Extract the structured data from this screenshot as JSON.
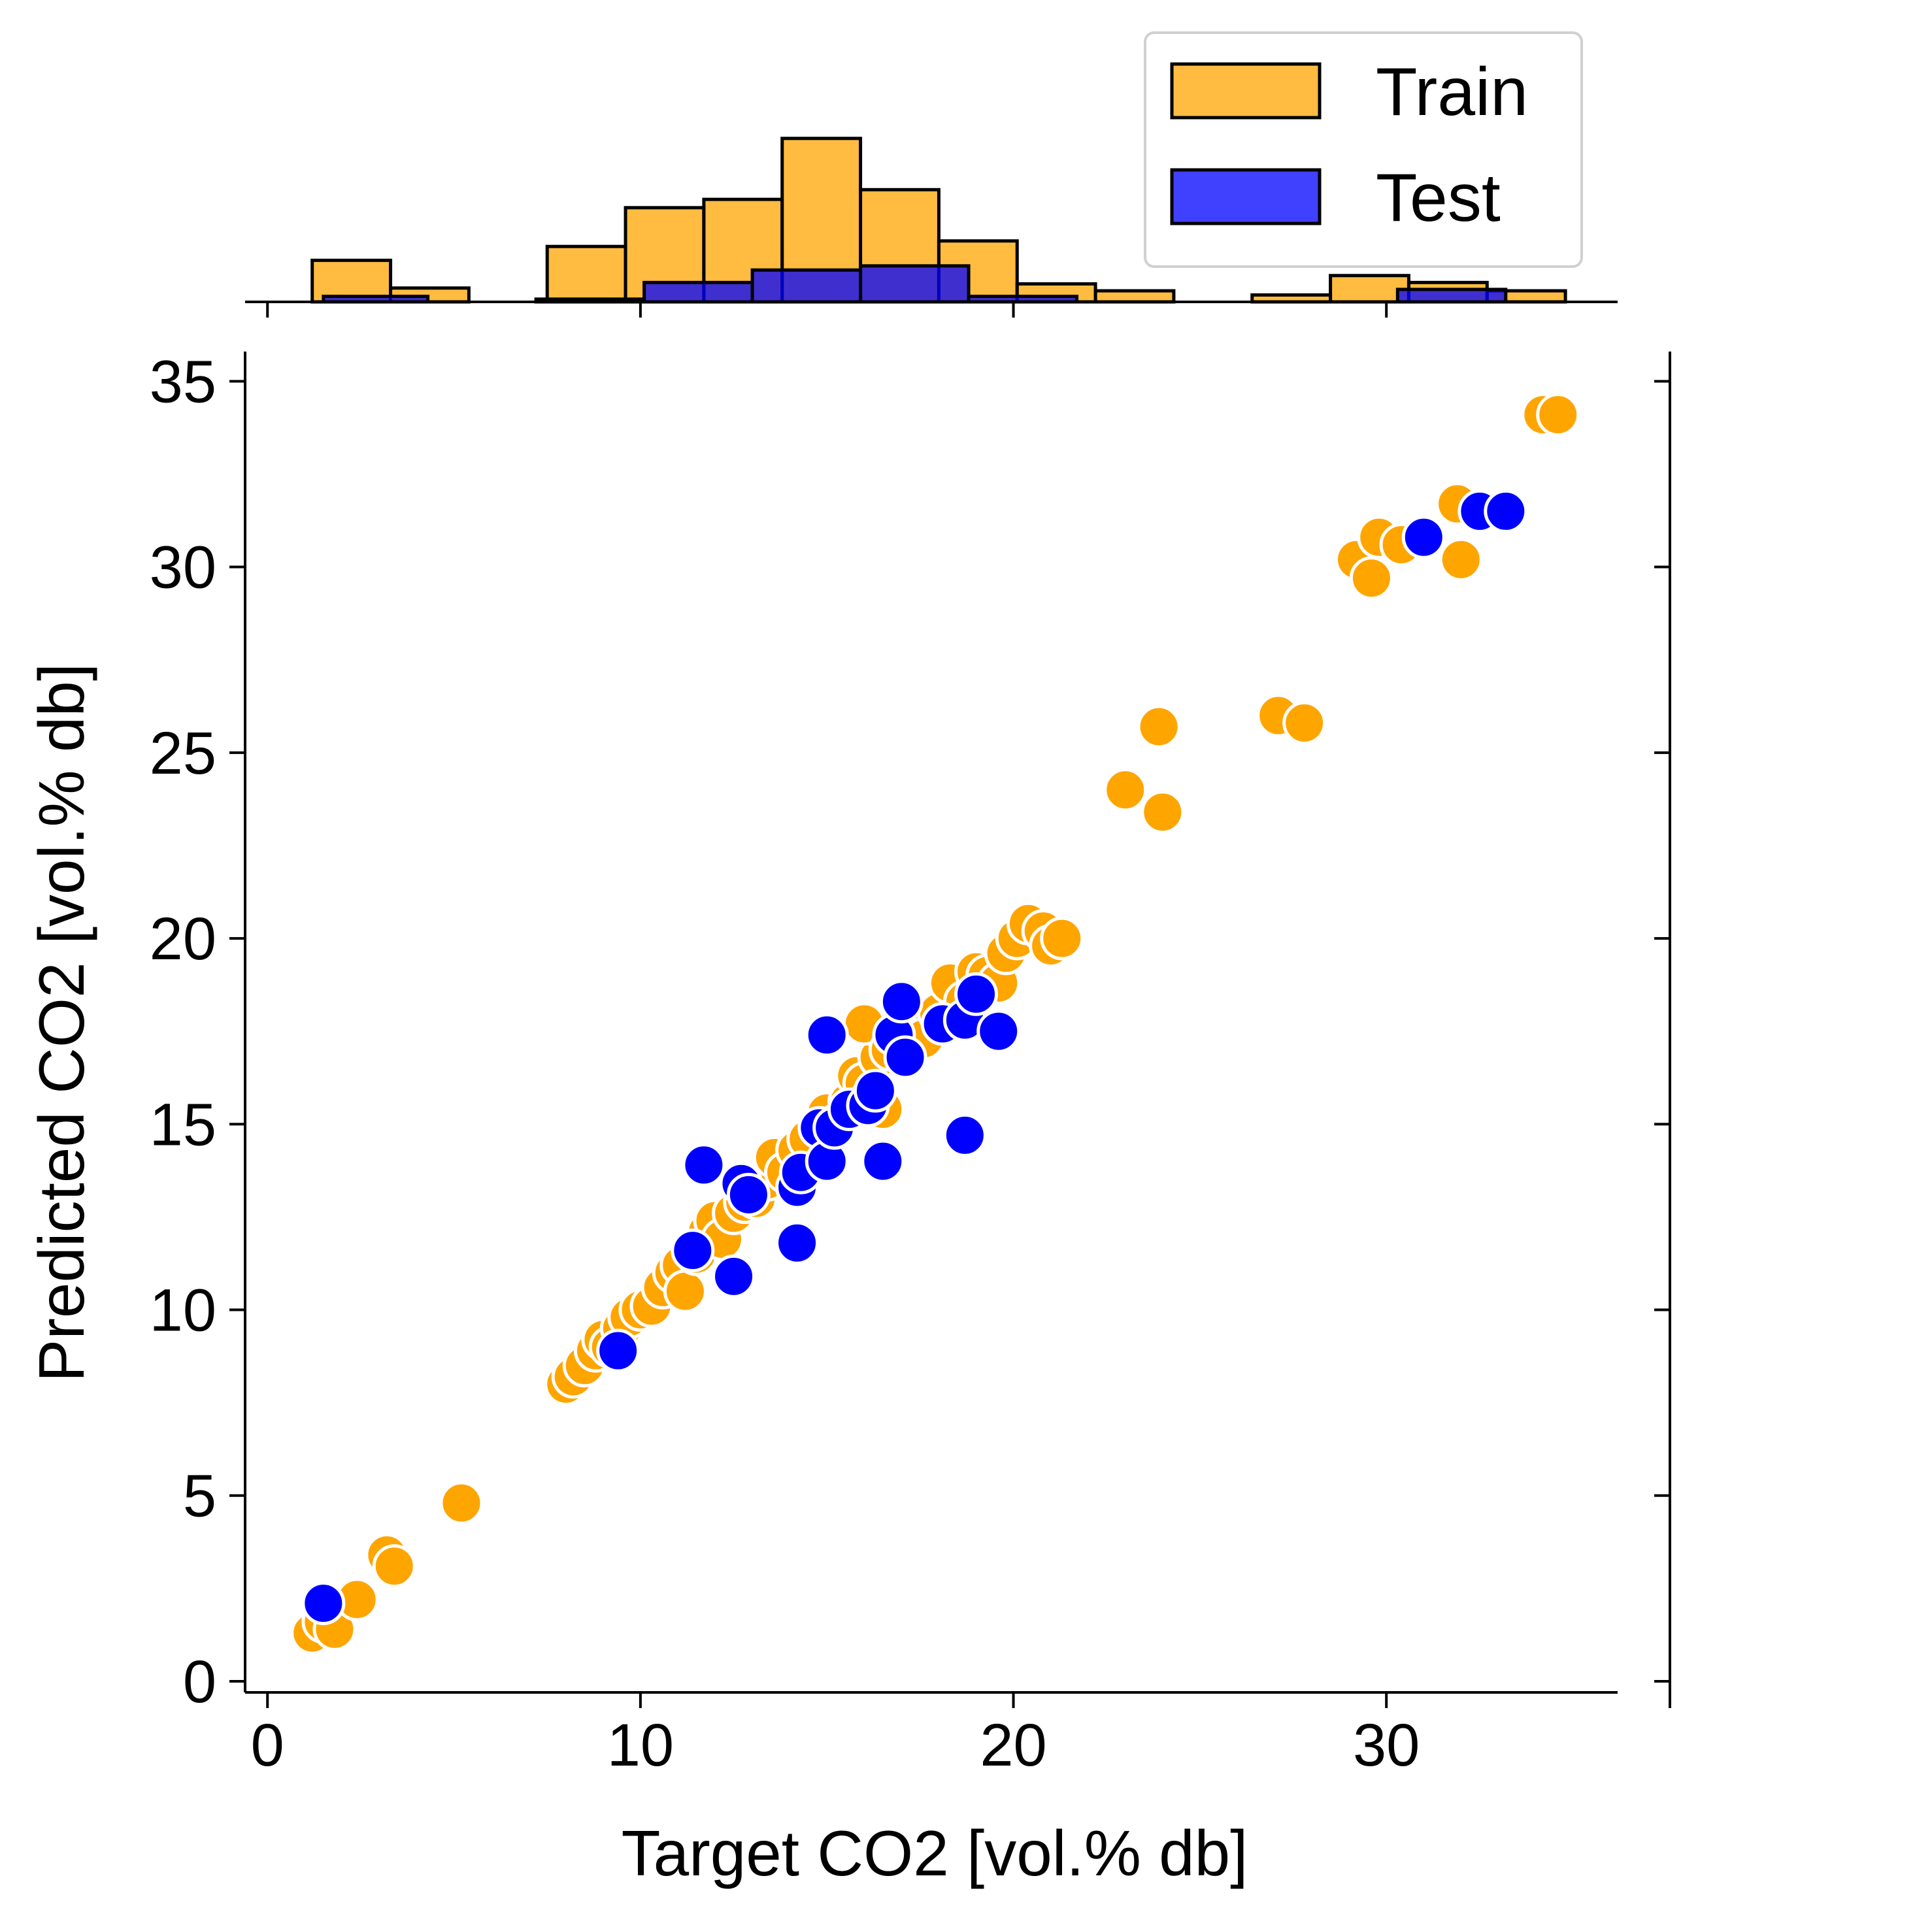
{
  "chart_data": {
    "type": "scatter",
    "title": "",
    "xlabel": "Target CO2 [vol.% db]",
    "ylabel": "Predicted CO2 [vol.% db]",
    "xlim": [
      -0.6,
      36.2
    ],
    "ylim": [
      -0.3,
      35.8
    ],
    "xticks": [
      0,
      10,
      20,
      30
    ],
    "yticks": [
      0,
      5,
      10,
      15,
      20,
      25,
      30,
      35
    ],
    "grid": false,
    "legend": {
      "placement": "top-right",
      "entries": [
        "Train",
        "Test"
      ]
    },
    "colors": {
      "Train": "#FFA500",
      "Test": "#0000FF",
      "edge": "#FFFFFF",
      "bar_edge": "#000000"
    },
    "series": [
      {
        "name": "Train",
        "points": [
          [
            1.2,
            1.3
          ],
          [
            1.5,
            1.6
          ],
          [
            1.8,
            1.4
          ],
          [
            2.4,
            2.2
          ],
          [
            3.2,
            3.4
          ],
          [
            3.4,
            3.1
          ],
          [
            5.2,
            4.8
          ],
          [
            8.0,
            8.0
          ],
          [
            8.2,
            8.2
          ],
          [
            8.5,
            8.5
          ],
          [
            8.8,
            8.9
          ],
          [
            9.0,
            9.2
          ],
          [
            9.2,
            9.0
          ],
          [
            9.5,
            9.5
          ],
          [
            9.7,
            9.8
          ],
          [
            10.0,
            10.0
          ],
          [
            10.3,
            10.1
          ],
          [
            10.6,
            10.6
          ],
          [
            10.9,
            11.0
          ],
          [
            11.1,
            11.2
          ],
          [
            11.2,
            10.5
          ],
          [
            11.5,
            11.5
          ],
          [
            11.8,
            12.1
          ],
          [
            12.0,
            12.4
          ],
          [
            12.2,
            11.9
          ],
          [
            12.5,
            12.6
          ],
          [
            12.8,
            12.9
          ],
          [
            13.1,
            13.0
          ],
          [
            13.4,
            13.5
          ],
          [
            13.6,
            14.1
          ],
          [
            13.9,
            13.7
          ],
          [
            14.2,
            14.3
          ],
          [
            14.5,
            14.6
          ],
          [
            14.8,
            15.0
          ],
          [
            15.0,
            15.3
          ],
          [
            15.3,
            15.0
          ],
          [
            15.6,
            15.6
          ],
          [
            15.8,
            16.3
          ],
          [
            16.0,
            16.1
          ],
          [
            16.2,
            15.7
          ],
          [
            16.4,
            16.8
          ],
          [
            16.5,
            15.4
          ],
          [
            16.0,
            17.7
          ],
          [
            16.7,
            17.0
          ],
          [
            17.0,
            17.4
          ],
          [
            17.3,
            17.6
          ],
          [
            17.6,
            17.3
          ],
          [
            18.0,
            18.0
          ],
          [
            18.3,
            18.8
          ],
          [
            18.7,
            18.3
          ],
          [
            19.0,
            19.1
          ],
          [
            19.3,
            19.0
          ],
          [
            19.6,
            18.8
          ],
          [
            19.8,
            19.6
          ],
          [
            20.1,
            20.0
          ],
          [
            20.4,
            20.4
          ],
          [
            20.8,
            20.2
          ],
          [
            21.0,
            19.8
          ],
          [
            21.3,
            20.0
          ],
          [
            23.0,
            24.0
          ],
          [
            23.9,
            25.7
          ],
          [
            24.0,
            23.4
          ],
          [
            27.1,
            26.0
          ],
          [
            27.8,
            25.8
          ],
          [
            29.2,
            30.2
          ],
          [
            29.6,
            29.7
          ],
          [
            29.8,
            30.8
          ],
          [
            30.4,
            30.6
          ],
          [
            31.9,
            31.7
          ],
          [
            32.0,
            30.2
          ],
          [
            34.2,
            34.1
          ],
          [
            34.6,
            34.1
          ]
        ]
      },
      {
        "name": "Test",
        "points": [
          [
            1.5,
            2.1
          ],
          [
            9.4,
            8.9
          ],
          [
            11.4,
            11.6
          ],
          [
            11.7,
            13.9
          ],
          [
            12.5,
            10.9
          ],
          [
            12.7,
            13.4
          ],
          [
            12.9,
            13.1
          ],
          [
            14.2,
            11.8
          ],
          [
            14.2,
            13.3
          ],
          [
            14.3,
            13.7
          ],
          [
            14.8,
            14.9
          ],
          [
            15.0,
            14.0
          ],
          [
            15.2,
            14.9
          ],
          [
            15.0,
            17.4
          ],
          [
            15.6,
            15.4
          ],
          [
            16.1,
            15.5
          ],
          [
            16.3,
            15.9
          ],
          [
            16.5,
            14.0
          ],
          [
            16.8,
            17.4
          ],
          [
            17.0,
            18.3
          ],
          [
            17.1,
            16.8
          ],
          [
            18.1,
            17.7
          ],
          [
            18.7,
            17.8
          ],
          [
            18.7,
            14.7
          ],
          [
            19.0,
            18.5
          ],
          [
            19.6,
            17.5
          ],
          [
            31.0,
            30.8
          ],
          [
            32.5,
            31.5
          ],
          [
            33.2,
            31.5
          ]
        ]
      }
    ],
    "histograms": {
      "bin_edges": [
        1.2,
        3.3,
        5.4,
        7.5,
        9.6,
        11.7,
        13.8,
        15.9,
        18.0,
        20.1,
        22.2,
        24.3,
        26.4,
        28.5,
        30.6,
        32.7,
        34.8
      ],
      "Train_counts": [
        3,
        1,
        0,
        4,
        6.8,
        7.4,
        11.8,
        8.1,
        4.4,
        1.3,
        0.8,
        0,
        0.5,
        1.9,
        1.4,
        0.8
      ],
      "Test_edges": [
        1.5,
        4.3,
        7.2,
        10.1,
        13.0,
        15.9,
        18.8,
        21.7,
        24.6,
        27.5,
        30.3,
        33.2
      ],
      "Test_counts": [
        0.4,
        0,
        0.2,
        1.4,
        2.3,
        2.6,
        0.4,
        0,
        0,
        0,
        0.9
      ]
    }
  }
}
